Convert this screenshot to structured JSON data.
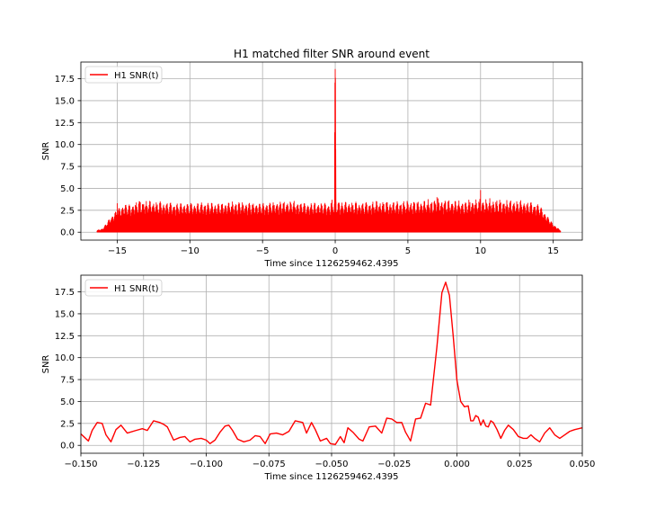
{
  "figure": {
    "title": "H1 matched filter SNR around event"
  },
  "chart_data": [
    {
      "type": "line",
      "title": "H1 matched filter SNR around event",
      "xlabel": "Time since 1126259462.4395",
      "ylabel": "SNR",
      "xlim": [
        -17.5,
        17.0
      ],
      "ylim": [
        -0.9,
        19.4
      ],
      "grid": true,
      "legend_position": "top-left",
      "xticks": [
        "−15",
        "−10",
        "−5",
        "0",
        "5",
        "10",
        "15"
      ],
      "xtick_values": [
        -15,
        -10,
        -5,
        0,
        5,
        10,
        15
      ],
      "yticks": [
        "0.0",
        "2.5",
        "5.0",
        "7.5",
        "10.0",
        "12.5",
        "15.0",
        "17.5"
      ],
      "ytick_values": [
        0,
        2.5,
        5,
        7.5,
        10,
        12.5,
        15,
        17.5
      ],
      "series": [
        {
          "name": "H1 SNR(t)",
          "color": "#ff0000",
          "x": [
            -16.4,
            -16.0,
            -15.5,
            -15.0,
            -14.5,
            -14.0,
            -13.5,
            -13.0,
            -12.0,
            -11.0,
            -10.0,
            -9.0,
            -8.0,
            -7.0,
            -6.0,
            -5.0,
            -4.0,
            -3.0,
            -2.0,
            -1.0,
            -0.3,
            0.0,
            0.3,
            1.0,
            2.0,
            3.0,
            4.0,
            5.0,
            6.0,
            7.0,
            8.0,
            9.0,
            10.0,
            11.0,
            12.0,
            13.0,
            14.0,
            15.0,
            15.5
          ],
          "y": [
            0.2,
            0.4,
            1.6,
            2.6,
            3.2,
            3.1,
            3.8,
            3.6,
            3.5,
            3.3,
            3.3,
            3.4,
            3.3,
            3.5,
            3.4,
            3.3,
            3.5,
            3.6,
            3.3,
            3.4,
            3.2,
            18.6,
            3.4,
            3.5,
            3.4,
            3.6,
            3.5,
            3.6,
            3.6,
            4.0,
            3.7,
            3.5,
            4.8,
            3.8,
            3.7,
            3.6,
            3.2,
            0.9,
            0.2
          ]
        }
      ]
    },
    {
      "type": "line",
      "title": "",
      "xlabel": "Time since 1126259462.4395",
      "ylabel": "SNR",
      "xlim": [
        -0.15,
        0.05
      ],
      "ylim": [
        -0.9,
        19.4
      ],
      "grid": true,
      "legend_position": "top-left",
      "xticks": [
        "−0.150",
        "−0.125",
        "−0.100",
        "−0.075",
        "−0.050",
        "−0.025",
        "0.000",
        "0.025",
        "0.050"
      ],
      "xtick_values": [
        -0.15,
        -0.125,
        -0.1,
        -0.075,
        -0.05,
        -0.025,
        0.0,
        0.025,
        0.05
      ],
      "yticks": [
        "0.0",
        "2.5",
        "5.0",
        "7.5",
        "10.0",
        "12.5",
        "15.0",
        "17.5"
      ],
      "ytick_values": [
        0,
        2.5,
        5,
        7.5,
        10,
        12.5,
        15,
        17.5
      ],
      "series": [
        {
          "name": "H1 SNR(t)",
          "color": "#ff0000",
          "x": [
            -0.15,
            -0.1485,
            -0.147,
            -0.1455,
            -0.1435,
            -0.1415,
            -0.14,
            -0.138,
            -0.136,
            -0.134,
            -0.1315,
            -0.128,
            -0.1255,
            -0.1235,
            -0.121,
            -0.1185,
            -0.117,
            -0.1155,
            -0.113,
            -0.1105,
            -0.1085,
            -0.1065,
            -0.1045,
            -0.102,
            -0.1,
            -0.0985,
            -0.0965,
            -0.0945,
            -0.0925,
            -0.091,
            -0.0895,
            -0.0875,
            -0.085,
            -0.0825,
            -0.0805,
            -0.0785,
            -0.0765,
            -0.0745,
            -0.072,
            -0.0695,
            -0.067,
            -0.0645,
            -0.0615,
            -0.06,
            -0.058,
            -0.0565,
            -0.0545,
            -0.052,
            -0.0505,
            -0.0485,
            -0.0465,
            -0.045,
            -0.0435,
            -0.0415,
            -0.039,
            -0.0375,
            -0.035,
            -0.0325,
            -0.03,
            -0.028,
            -0.026,
            -0.024,
            -0.022,
            -0.0205,
            -0.0185,
            -0.0165,
            -0.0145,
            -0.0125,
            -0.0105,
            -0.008,
            -0.006,
            -0.0045,
            -0.003,
            -0.0015,
            0.0,
            0.0015,
            0.003,
            0.0045,
            0.0055,
            0.0065,
            0.0075,
            0.0085,
            0.0095,
            0.0105,
            0.0115,
            0.0125,
            0.0135,
            0.0145,
            0.016,
            0.0175,
            0.019,
            0.0205,
            0.0225,
            0.0245,
            0.0265,
            0.028,
            0.0295,
            0.031,
            0.033,
            0.035,
            0.037,
            0.039,
            0.041,
            0.043,
            0.045,
            0.047,
            0.0485,
            0.05
          ],
          "y": [
            1.3,
            0.9,
            0.5,
            1.7,
            2.6,
            2.5,
            1.2,
            0.4,
            1.8,
            2.3,
            1.4,
            1.7,
            1.9,
            1.7,
            2.8,
            2.6,
            2.4,
            2.1,
            0.6,
            0.9,
            1.0,
            0.4,
            0.7,
            0.8,
            0.6,
            0.2,
            0.6,
            1.5,
            2.2,
            2.3,
            1.7,
            0.7,
            0.4,
            0.6,
            1.1,
            1.0,
            0.2,
            1.3,
            1.4,
            1.2,
            1.6,
            2.8,
            2.6,
            1.4,
            2.6,
            1.8,
            0.5,
            0.8,
            0.2,
            0.1,
            1.0,
            0.3,
            2.0,
            1.5,
            0.7,
            0.5,
            2.1,
            2.2,
            1.4,
            3.1,
            3.0,
            2.6,
            2.6,
            1.5,
            0.5,
            3.0,
            3.1,
            4.8,
            4.6,
            11.2,
            17.4,
            18.6,
            17.1,
            12.5,
            7.4,
            5.0,
            4.4,
            4.5,
            2.8,
            2.8,
            3.4,
            3.2,
            2.3,
            2.9,
            2.2,
            2.1,
            2.8,
            2.6,
            1.8,
            0.8,
            1.7,
            2.3,
            1.8,
            1.0,
            0.8,
            0.8,
            1.2,
            0.8,
            0.4,
            1.4,
            2.0,
            1.2,
            0.8,
            1.2,
            1.6,
            1.8,
            1.9,
            2.0
          ]
        }
      ]
    }
  ]
}
